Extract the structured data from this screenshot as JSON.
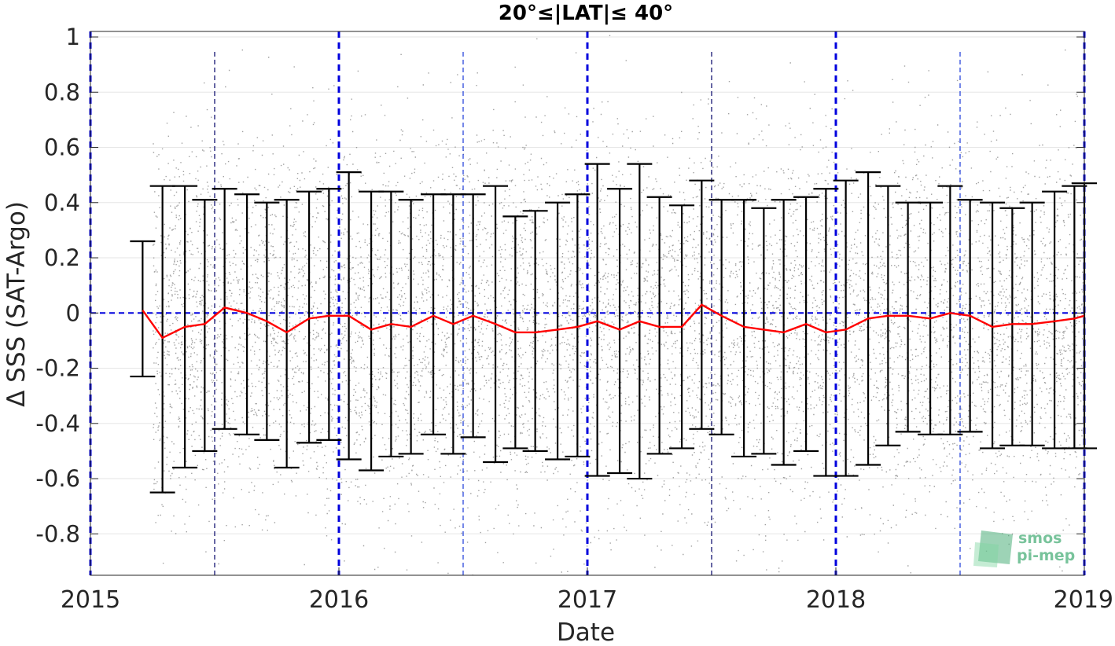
{
  "chart_data": {
    "type": "scatter",
    "title": "20°≤|LAT|≤ 40°",
    "xlabel": "Date",
    "ylabel": "Δ SSS (SAT-Argo)",
    "xlim": [
      2015.0,
      2019.0
    ],
    "ylim": [
      -0.95,
      1.02
    ],
    "x_ticks": [
      2015,
      2016,
      2017,
      2018,
      2019
    ],
    "x_tick_labels": [
      "2015",
      "2016",
      "2017",
      "2018",
      "2019"
    ],
    "y_ticks": [
      -0.8,
      -0.6,
      -0.4,
      -0.2,
      0,
      0.2,
      0.4,
      0.6,
      0.8,
      1
    ],
    "y_tick_labels": [
      "-0.8",
      "-0.6",
      "-0.4",
      "-0.2",
      "0",
      "0.2",
      "0.4",
      "0.6",
      "0.8",
      "1"
    ],
    "grid": true,
    "zero_line": {
      "y": 0,
      "color": "#0000dd",
      "style": "dashed"
    },
    "year_lines": {
      "x": [
        2015,
        2016,
        2017,
        2018,
        2019
      ],
      "color": "#0000dd",
      "style": "dashed"
    },
    "mid_year_lines": {
      "x": [
        2015.5,
        2016.5,
        2017.5,
        2018.5
      ],
      "colors": [
        "#000066",
        "#1a3ad8",
        "#000066",
        "#1a3ad8"
      ],
      "style": "dashed"
    },
    "scatter_points": {
      "description_color": "#808080",
      "x_range": [
        2015.25,
        2019.0
      ],
      "density": "dense"
    },
    "series": [
      {
        "name": "",
        "type": "line",
        "color": "#ff0000",
        "x": [
          2015.21,
          2015.29,
          2015.38,
          2015.46,
          2015.54,
          2015.63,
          2015.71,
          2015.79,
          2015.88,
          2015.96,
          2016.04,
          2016.13,
          2016.21,
          2016.29,
          2016.38,
          2016.46,
          2016.54,
          2016.63,
          2016.71,
          2016.79,
          2016.88,
          2016.96,
          2017.04,
          2017.13,
          2017.21,
          2017.29,
          2017.38,
          2017.46,
          2017.54,
          2017.63,
          2017.71,
          2017.79,
          2017.88,
          2017.96,
          2018.04,
          2018.13,
          2018.21,
          2018.29,
          2018.38,
          2018.46,
          2018.54,
          2018.63,
          2018.71,
          2018.79,
          2018.88,
          2018.96,
          2019.0
        ],
        "values": [
          0.01,
          -0.09,
          -0.05,
          -0.04,
          0.02,
          0.0,
          -0.03,
          -0.07,
          -0.02,
          -0.01,
          -0.01,
          -0.06,
          -0.04,
          -0.05,
          -0.01,
          -0.04,
          -0.01,
          -0.04,
          -0.07,
          -0.07,
          -0.06,
          -0.05,
          -0.03,
          -0.06,
          -0.03,
          -0.05,
          -0.05,
          0.03,
          -0.01,
          -0.05,
          -0.06,
          -0.07,
          -0.04,
          -0.07,
          -0.06,
          -0.02,
          -0.01,
          -0.01,
          -0.02,
          0.0,
          -0.01,
          -0.05,
          -0.04,
          -0.04,
          -0.03,
          -0.02,
          -0.01
        ]
      }
    ],
    "error_bars": {
      "color": "#000000",
      "x": [
        2015.21,
        2015.29,
        2015.38,
        2015.46,
        2015.54,
        2015.63,
        2015.71,
        2015.79,
        2015.88,
        2015.96,
        2016.04,
        2016.13,
        2016.21,
        2016.29,
        2016.38,
        2016.46,
        2016.54,
        2016.63,
        2016.71,
        2016.79,
        2016.88,
        2016.96,
        2017.04,
        2017.13,
        2017.21,
        2017.29,
        2017.38,
        2017.46,
        2017.54,
        2017.63,
        2017.71,
        2017.79,
        2017.88,
        2017.96,
        2018.04,
        2018.13,
        2018.21,
        2018.29,
        2018.38,
        2018.46,
        2018.54,
        2018.63,
        2018.71,
        2018.79,
        2018.88,
        2018.96,
        2019.0
      ],
      "upper": [
        0.26,
        0.46,
        0.46,
        0.41,
        0.45,
        0.43,
        0.4,
        0.41,
        0.44,
        0.45,
        0.51,
        0.44,
        0.44,
        0.41,
        0.43,
        0.43,
        0.43,
        0.46,
        0.35,
        0.37,
        0.4,
        0.43,
        0.54,
        0.45,
        0.54,
        0.42,
        0.39,
        0.48,
        0.41,
        0.41,
        0.38,
        0.41,
        0.42,
        0.45,
        0.48,
        0.51,
        0.46,
        0.4,
        0.4,
        0.46,
        0.41,
        0.4,
        0.38,
        0.4,
        0.44,
        0.46,
        0.47
      ],
      "lower": [
        -0.23,
        -0.65,
        -0.56,
        -0.5,
        -0.42,
        -0.44,
        -0.46,
        -0.56,
        -0.47,
        -0.46,
        -0.53,
        -0.57,
        -0.52,
        -0.51,
        -0.44,
        -0.51,
        -0.45,
        -0.54,
        -0.49,
        -0.5,
        -0.53,
        -0.52,
        -0.59,
        -0.58,
        -0.6,
        -0.51,
        -0.49,
        -0.42,
        -0.44,
        -0.52,
        -0.51,
        -0.55,
        -0.5,
        -0.59,
        -0.59,
        -0.55,
        -0.48,
        -0.43,
        -0.44,
        -0.44,
        -0.43,
        -0.49,
        -0.48,
        -0.48,
        -0.49,
        -0.49,
        -0.49
      ]
    }
  },
  "watermark": {
    "line1": "smos",
    "line2": "pi-mep",
    "color": "#4caf7a"
  }
}
